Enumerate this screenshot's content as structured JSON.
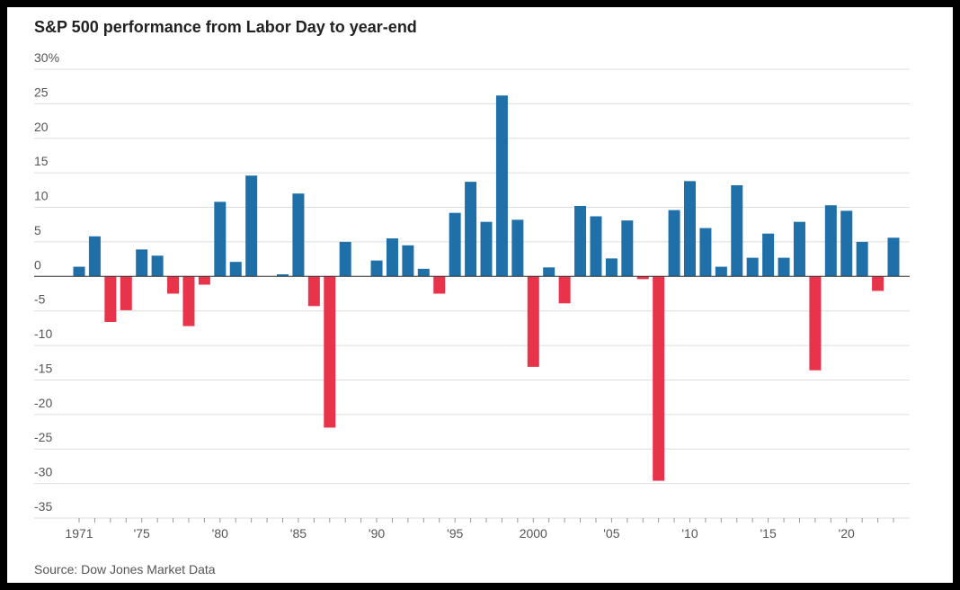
{
  "chart_data": {
    "type": "bar",
    "title": "S&P 500 performance from Labor Day to year-end",
    "source": "Source: Dow Jones Market Data",
    "categories": [
      "1971",
      null,
      null,
      null,
      "'75",
      null,
      null,
      null,
      null,
      "'80",
      null,
      null,
      null,
      null,
      "'85",
      null,
      null,
      null,
      null,
      "'90",
      null,
      null,
      null,
      null,
      "'95",
      null,
      null,
      null,
      null,
      "2000",
      null,
      null,
      null,
      null,
      "'05",
      null,
      null,
      null,
      null,
      "'10",
      null,
      null,
      null,
      null,
      "'15",
      null,
      null,
      null,
      null,
      "'20",
      null,
      null,
      null
    ],
    "values": [
      1.4,
      5.8,
      -6.6,
      -4.9,
      3.9,
      3.0,
      -2.5,
      -7.2,
      -1.2,
      10.8,
      2.1,
      14.6,
      null,
      0.3,
      12.0,
      -4.3,
      -21.9,
      5.0,
      null,
      2.3,
      5.5,
      4.5,
      1.1,
      -2.5,
      9.2,
      13.7,
      7.9,
      26.2,
      8.2,
      -13.1,
      1.3,
      -3.9,
      10.2,
      8.7,
      2.6,
      8.1,
      -0.4,
      -29.6,
      9.6,
      13.8,
      7.0,
      1.4,
      13.2,
      2.7,
      6.2,
      2.7,
      7.9,
      -13.6,
      10.3,
      9.5,
      5.0,
      -2.1,
      5.6
    ],
    "positive_color": "#1f6fa8",
    "negative_color": "#e8344a",
    "ylim": [
      -35,
      30
    ],
    "yticks": [
      {
        "value": 30,
        "label": "30%"
      },
      25,
      20,
      15,
      10,
      5,
      0,
      -5,
      -10,
      -15,
      -20,
      -25,
      -30,
      -35
    ],
    "grid": true
  }
}
